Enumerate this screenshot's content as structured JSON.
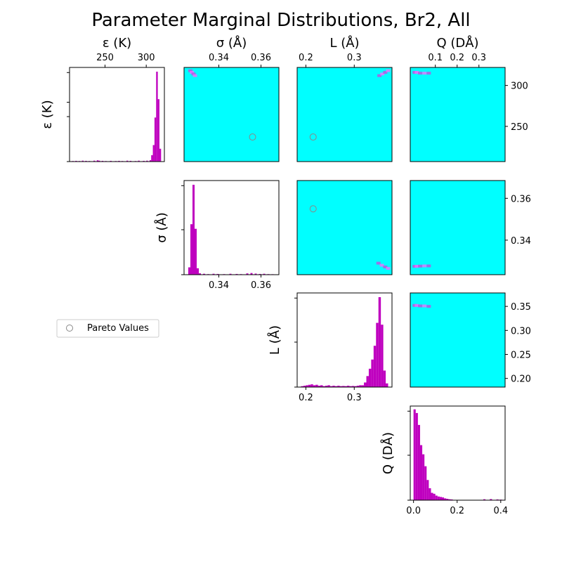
{
  "chart_data": {
    "type": "corner",
    "title": "Parameter Marginal Distributions, Br2, All",
    "parameters": [
      {
        "key": "eps",
        "label": "ε (K)",
        "range": [
          207,
          322
        ],
        "ticks": [
          {
            "v": 250,
            "t": "250"
          },
          {
            "v": 300,
            "t": "300"
          }
        ]
      },
      {
        "key": "sig",
        "label": "σ (Å)",
        "range": [
          0.3235,
          0.3685
        ],
        "ticks": [
          {
            "v": 0.34,
            "t": "0.34"
          },
          {
            "v": 0.36,
            "t": "0.36"
          }
        ]
      },
      {
        "key": "L",
        "label": "L (Å)",
        "range": [
          0.182,
          0.378
        ],
        "ticks": [
          {
            "v": 0.2,
            "t": "0.2"
          },
          {
            "v": 0.3,
            "t": "0.3"
          }
        ]
      },
      {
        "key": "Q",
        "label": "Q (DÅ)",
        "range": [
          -0.015,
          0.42
        ],
        "ticks": [
          {
            "v": 0.1,
            "t": "0.1"
          },
          {
            "v": 0.2,
            "t": "0.2"
          },
          {
            "v": 0.3,
            "t": "0.3"
          }
        ]
      }
    ],
    "right_axis_ticks": [
      [
        {
          "v": 250,
          "t": "250"
        },
        {
          "v": 300,
          "t": "300"
        }
      ],
      [
        {
          "v": 0.34,
          "t": "0.34"
        },
        {
          "v": 0.36,
          "t": "0.36"
        }
      ],
      [
        {
          "v": 0.2,
          "t": "0.20"
        },
        {
          "v": 0.25,
          "t": "0.25"
        },
        {
          "v": 0.3,
          "t": "0.30"
        },
        {
          "v": 0.35,
          "t": "0.35"
        }
      ],
      []
    ],
    "bottom_axis_ticks": [
      [],
      [
        {
          "v": 0.34,
          "t": "0.34"
        },
        {
          "v": 0.36,
          "t": "0.36"
        }
      ],
      [
        {
          "v": 0.2,
          "t": "0.2"
        },
        {
          "v": 0.3,
          "t": "0.3"
        }
      ],
      [
        {
          "v": 0.0,
          "t": "0.0"
        },
        {
          "v": 0.2,
          "t": "0.2"
        },
        {
          "v": 0.4,
          "t": "0.4"
        }
      ]
    ],
    "histograms": [
      {
        "param": "eps",
        "color": "#bf00bf",
        "bins": [
          {
            "x0": 210,
            "x1": 212,
            "h": 0.006
          },
          {
            "x0": 214,
            "x1": 216,
            "h": 0.008
          },
          {
            "x0": 218,
            "x1": 220,
            "h": 0.006
          },
          {
            "x0": 222,
            "x1": 224,
            "h": 0.01
          },
          {
            "x0": 226,
            "x1": 228,
            "h": 0.008
          },
          {
            "x0": 230,
            "x1": 232,
            "h": 0.006
          },
          {
            "x0": 236,
            "x1": 238,
            "h": 0.01
          },
          {
            "x0": 240,
            "x1": 242,
            "h": 0.014
          },
          {
            "x0": 242,
            "x1": 244,
            "h": 0.01
          },
          {
            "x0": 246,
            "x1": 248,
            "h": 0.008
          },
          {
            "x0": 250,
            "x1": 252,
            "h": 0.006
          },
          {
            "x0": 256,
            "x1": 258,
            "h": 0.008
          },
          {
            "x0": 262,
            "x1": 264,
            "h": 0.006
          },
          {
            "x0": 266,
            "x1": 268,
            "h": 0.008
          },
          {
            "x0": 270,
            "x1": 272,
            "h": 0.006
          },
          {
            "x0": 276,
            "x1": 278,
            "h": 0.01
          },
          {
            "x0": 280,
            "x1": 282,
            "h": 0.008
          },
          {
            "x0": 286,
            "x1": 288,
            "h": 0.006
          },
          {
            "x0": 290,
            "x1": 292,
            "h": 0.01
          },
          {
            "x0": 296,
            "x1": 298,
            "h": 0.008
          },
          {
            "x0": 300,
            "x1": 302,
            "h": 0.01
          },
          {
            "x0": 304,
            "x1": 306,
            "h": 0.015
          },
          {
            "x0": 306,
            "x1": 308,
            "h": 0.07
          },
          {
            "x0": 308,
            "x1": 310,
            "h": 0.18
          },
          {
            "x0": 310,
            "x1": 312,
            "h": 0.48
          },
          {
            "x0": 312,
            "x1": 314,
            "h": 0.98
          },
          {
            "x0": 314,
            "x1": 316,
            "h": 0.68
          },
          {
            "x0": 316,
            "x1": 318,
            "h": 0.14
          }
        ]
      },
      {
        "param": "sig",
        "color": "#bf00bf",
        "bins": [
          {
            "x0": 0.3255,
            "x1": 0.3265,
            "h": 0.08
          },
          {
            "x0": 0.3265,
            "x1": 0.3275,
            "h": 0.55
          },
          {
            "x0": 0.3275,
            "x1": 0.3285,
            "h": 0.98
          },
          {
            "x0": 0.3285,
            "x1": 0.3295,
            "h": 0.5
          },
          {
            "x0": 0.3295,
            "x1": 0.3305,
            "h": 0.07
          },
          {
            "x0": 0.3305,
            "x1": 0.3315,
            "h": 0.015
          },
          {
            "x0": 0.3325,
            "x1": 0.3335,
            "h": 0.01
          },
          {
            "x0": 0.3345,
            "x1": 0.3355,
            "h": 0.006
          },
          {
            "x0": 0.337,
            "x1": 0.338,
            "h": 0.01
          },
          {
            "x0": 0.339,
            "x1": 0.34,
            "h": 0.008
          },
          {
            "x0": 0.342,
            "x1": 0.343,
            "h": 0.006
          },
          {
            "x0": 0.345,
            "x1": 0.346,
            "h": 0.01
          },
          {
            "x0": 0.348,
            "x1": 0.349,
            "h": 0.008
          },
          {
            "x0": 0.35,
            "x1": 0.351,
            "h": 0.006
          },
          {
            "x0": 0.353,
            "x1": 0.354,
            "h": 0.014
          },
          {
            "x0": 0.355,
            "x1": 0.356,
            "h": 0.018
          },
          {
            "x0": 0.357,
            "x1": 0.358,
            "h": 0.012
          },
          {
            "x0": 0.359,
            "x1": 0.36,
            "h": 0.008
          },
          {
            "x0": 0.361,
            "x1": 0.362,
            "h": 0.01
          },
          {
            "x0": 0.363,
            "x1": 0.364,
            "h": 0.006
          },
          {
            "x0": 0.365,
            "x1": 0.366,
            "h": 0.005
          }
        ]
      },
      {
        "param": "L",
        "color": "#bf00bf",
        "bins": [
          {
            "x0": 0.19,
            "x1": 0.195,
            "h": 0.01
          },
          {
            "x0": 0.195,
            "x1": 0.2,
            "h": 0.015
          },
          {
            "x0": 0.2,
            "x1": 0.205,
            "h": 0.02
          },
          {
            "x0": 0.205,
            "x1": 0.21,
            "h": 0.025
          },
          {
            "x0": 0.21,
            "x1": 0.215,
            "h": 0.03
          },
          {
            "x0": 0.215,
            "x1": 0.22,
            "h": 0.02
          },
          {
            "x0": 0.22,
            "x1": 0.225,
            "h": 0.025
          },
          {
            "x0": 0.225,
            "x1": 0.23,
            "h": 0.015
          },
          {
            "x0": 0.23,
            "x1": 0.235,
            "h": 0.02
          },
          {
            "x0": 0.235,
            "x1": 0.24,
            "h": 0.01
          },
          {
            "x0": 0.24,
            "x1": 0.245,
            "h": 0.015
          },
          {
            "x0": 0.245,
            "x1": 0.25,
            "h": 0.02
          },
          {
            "x0": 0.25,
            "x1": 0.255,
            "h": 0.01
          },
          {
            "x0": 0.255,
            "x1": 0.26,
            "h": 0.015
          },
          {
            "x0": 0.26,
            "x1": 0.265,
            "h": 0.01
          },
          {
            "x0": 0.265,
            "x1": 0.27,
            "h": 0.015
          },
          {
            "x0": 0.27,
            "x1": 0.275,
            "h": 0.01
          },
          {
            "x0": 0.275,
            "x1": 0.28,
            "h": 0.012
          },
          {
            "x0": 0.28,
            "x1": 0.285,
            "h": 0.01
          },
          {
            "x0": 0.285,
            "x1": 0.29,
            "h": 0.015
          },
          {
            "x0": 0.29,
            "x1": 0.295,
            "h": 0.01
          },
          {
            "x0": 0.295,
            "x1": 0.3,
            "h": 0.012
          },
          {
            "x0": 0.3,
            "x1": 0.305,
            "h": 0.01
          },
          {
            "x0": 0.305,
            "x1": 0.31,
            "h": 0.015
          },
          {
            "x0": 0.31,
            "x1": 0.315,
            "h": 0.02
          },
          {
            "x0": 0.315,
            "x1": 0.32,
            "h": 0.02
          },
          {
            "x0": 0.32,
            "x1": 0.325,
            "h": 0.05
          },
          {
            "x0": 0.325,
            "x1": 0.33,
            "h": 0.12
          },
          {
            "x0": 0.33,
            "x1": 0.335,
            "h": 0.2
          },
          {
            "x0": 0.335,
            "x1": 0.34,
            "h": 0.3
          },
          {
            "x0": 0.34,
            "x1": 0.345,
            "h": 0.45
          },
          {
            "x0": 0.345,
            "x1": 0.35,
            "h": 0.7
          },
          {
            "x0": 0.35,
            "x1": 0.355,
            "h": 0.98
          },
          {
            "x0": 0.355,
            "x1": 0.36,
            "h": 0.68
          },
          {
            "x0": 0.36,
            "x1": 0.365,
            "h": 0.18
          },
          {
            "x0": 0.365,
            "x1": 0.37,
            "h": 0.04
          }
        ]
      },
      {
        "param": "Q",
        "color": "#bf00bf",
        "bins": [
          {
            "x0": 0.0,
            "x1": 0.01,
            "h": 0.99
          },
          {
            "x0": 0.01,
            "x1": 0.02,
            "h": 0.95
          },
          {
            "x0": 0.02,
            "x1": 0.03,
            "h": 0.82
          },
          {
            "x0": 0.03,
            "x1": 0.04,
            "h": 0.6
          },
          {
            "x0": 0.04,
            "x1": 0.05,
            "h": 0.5
          },
          {
            "x0": 0.05,
            "x1": 0.06,
            "h": 0.37
          },
          {
            "x0": 0.06,
            "x1": 0.07,
            "h": 0.22
          },
          {
            "x0": 0.07,
            "x1": 0.08,
            "h": 0.13
          },
          {
            "x0": 0.08,
            "x1": 0.09,
            "h": 0.08
          },
          {
            "x0": 0.09,
            "x1": 0.1,
            "h": 0.07
          },
          {
            "x0": 0.1,
            "x1": 0.11,
            "h": 0.05
          },
          {
            "x0": 0.11,
            "x1": 0.12,
            "h": 0.04
          },
          {
            "x0": 0.12,
            "x1": 0.13,
            "h": 0.035
          },
          {
            "x0": 0.13,
            "x1": 0.14,
            "h": 0.03
          },
          {
            "x0": 0.14,
            "x1": 0.15,
            "h": 0.02
          },
          {
            "x0": 0.15,
            "x1": 0.16,
            "h": 0.015
          },
          {
            "x0": 0.16,
            "x1": 0.17,
            "h": 0.01
          },
          {
            "x0": 0.17,
            "x1": 0.18,
            "h": 0.008
          },
          {
            "x0": 0.32,
            "x1": 0.33,
            "h": 0.01
          },
          {
            "x0": 0.35,
            "x1": 0.36,
            "h": 0.012
          },
          {
            "x0": 0.38,
            "x1": 0.39,
            "h": 0.008
          },
          {
            "x0": 0.395,
            "x1": 0.405,
            "h": 0.006
          }
        ]
      }
    ],
    "density_panels": [
      {
        "row": 0,
        "col": 1,
        "x": "sig",
        "y": "eps",
        "background": "#00ffff",
        "points": [
          {
            "x": 0.3265,
            "y": 318
          },
          {
            "x": 0.3272,
            "y": 316
          },
          {
            "x": 0.328,
            "y": 314
          },
          {
            "x": 0.3287,
            "y": 312
          }
        ]
      },
      {
        "row": 0,
        "col": 2,
        "x": "L",
        "y": "eps",
        "background": "#00ffff",
        "points": [
          {
            "x": 0.352,
            "y": 312
          },
          {
            "x": 0.358,
            "y": 314
          },
          {
            "x": 0.364,
            "y": 316
          },
          {
            "x": 0.37,
            "y": 318
          }
        ]
      },
      {
        "row": 0,
        "col": 3,
        "x": "Q",
        "y": "eps",
        "background": "#00ffff",
        "points": [
          {
            "x": 0.005,
            "y": 316
          },
          {
            "x": 0.015,
            "y": 316
          },
          {
            "x": 0.03,
            "y": 315
          },
          {
            "x": 0.05,
            "y": 315
          },
          {
            "x": 0.07,
            "y": 315
          }
        ]
      },
      {
        "row": 1,
        "col": 2,
        "x": "L",
        "y": "sig",
        "background": "#00ffff",
        "points": [
          {
            "x": 0.35,
            "y": 0.329
          },
          {
            "x": 0.357,
            "y": 0.328
          },
          {
            "x": 0.364,
            "y": 0.3272
          },
          {
            "x": 0.37,
            "y": 0.3265
          }
        ]
      },
      {
        "row": 1,
        "col": 3,
        "x": "Q",
        "y": "sig",
        "background": "#00ffff",
        "points": [
          {
            "x": 0.005,
            "y": 0.3275
          },
          {
            "x": 0.015,
            "y": 0.3275
          },
          {
            "x": 0.03,
            "y": 0.3276
          },
          {
            "x": 0.05,
            "y": 0.3277
          },
          {
            "x": 0.07,
            "y": 0.3277
          }
        ]
      },
      {
        "row": 2,
        "col": 3,
        "x": "Q",
        "y": "L",
        "background": "#00ffff",
        "points": [
          {
            "x": 0.005,
            "y": 0.352
          },
          {
            "x": 0.015,
            "y": 0.352
          },
          {
            "x": 0.03,
            "y": 0.351
          },
          {
            "x": 0.05,
            "y": 0.351
          },
          {
            "x": 0.07,
            "y": 0.35
          }
        ]
      }
    ],
    "pareto_points": [
      {
        "row": 0,
        "col": 1,
        "x": 0.356,
        "y": 237
      },
      {
        "row": 0,
        "col": 2,
        "x": 0.215,
        "y": 237
      },
      {
        "row": 1,
        "col": 2,
        "x": 0.215,
        "y": 0.355
      }
    ],
    "legend": {
      "label": "Pareto Values",
      "placement": "left",
      "marker_color": "#888888"
    },
    "grid": false
  }
}
